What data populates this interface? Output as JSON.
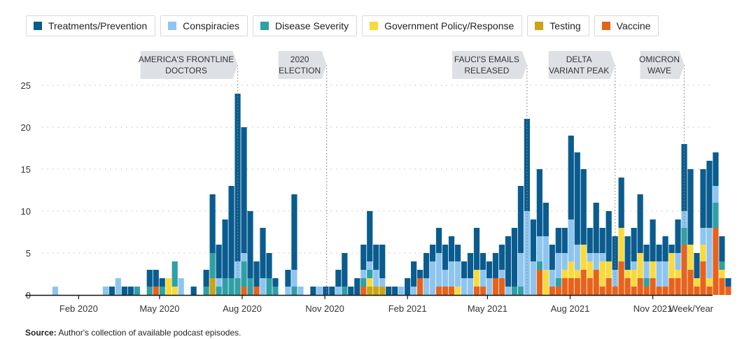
{
  "legend": [
    {
      "label": "Treatments/Prevention",
      "color": "#0a5c8f"
    },
    {
      "label": "Conspiracies",
      "color": "#8ec5f0"
    },
    {
      "label": "Disease Severity",
      "color": "#2fa0a6"
    },
    {
      "label": "Government Policy/Response",
      "color": "#f9da3c"
    },
    {
      "label": "Testing",
      "color": "#c9a514"
    },
    {
      "label": "Vaccine",
      "color": "#e8621b"
    }
  ],
  "source": {
    "label": "Source:",
    "text": "Author's collection of available podcast episodes."
  },
  "chart_data": {
    "type": "bar",
    "stacked": true,
    "xlabel": "Week/Year",
    "ylabel": "",
    "ylim": [
      0,
      25
    ],
    "yticks": [
      0,
      5,
      10,
      15,
      20,
      25
    ],
    "grid": true,
    "x_axis": {
      "type": "week",
      "start": "2020-01-06",
      "tick_labels": [
        "Feb 2020",
        "May 2020",
        "Aug 2020",
        "Nov 2020",
        "Feb 2021",
        "May 2021",
        "Aug 2021",
        "Nov 2021"
      ],
      "tick_dates": [
        "2020-02-01",
        "2020-05-01",
        "2020-08-01",
        "2020-11-01",
        "2021-02-01",
        "2021-05-01",
        "2021-08-01",
        "2021-11-01"
      ]
    },
    "series_order": [
      "Vaccine",
      "Testing",
      "Government Policy/Response",
      "Disease Severity",
      "Conspiracies",
      "Treatments/Prevention"
    ],
    "weeks": [
      {
        "week": "2020-01-06",
        "Conspiracies": 1
      },
      {
        "week": "2020-01-13"
      },
      {
        "week": "2020-01-20"
      },
      {
        "week": "2020-01-27"
      },
      {
        "week": "2020-02-03"
      },
      {
        "week": "2020-02-10"
      },
      {
        "week": "2020-02-17"
      },
      {
        "week": "2020-02-24"
      },
      {
        "week": "2020-03-02",
        "Conspiracies": 1
      },
      {
        "week": "2020-03-09",
        "Treatments/Prevention": 1
      },
      {
        "week": "2020-03-16",
        "Conspiracies": 2
      },
      {
        "week": "2020-03-23",
        "Treatments/Prevention": 1
      },
      {
        "week": "2020-03-30",
        "Treatments/Prevention": 1
      },
      {
        "week": "2020-04-06",
        "Disease Severity": 1
      },
      {
        "week": "2020-04-13"
      },
      {
        "week": "2020-04-20",
        "Disease Severity": 1,
        "Treatments/Prevention": 2
      },
      {
        "week": "2020-04-27",
        "Vaccine": 1,
        "Treatments/Prevention": 2
      },
      {
        "week": "2020-05-04",
        "Disease Severity": 1,
        "Treatments/Prevention": 1
      },
      {
        "week": "2020-05-11",
        "Government Policy/Response": 2
      },
      {
        "week": "2020-05-18",
        "Government Policy/Response": 1,
        "Disease Severity": 3
      },
      {
        "week": "2020-05-25",
        "Conspiracies": 2
      },
      {
        "week": "2020-06-01"
      },
      {
        "week": "2020-06-08",
        "Treatments/Prevention": 1
      },
      {
        "week": "2020-06-15"
      },
      {
        "week": "2020-06-22",
        "Disease Severity": 1,
        "Treatments/Prevention": 2
      },
      {
        "week": "2020-06-29",
        "Testing": 2,
        "Disease Severity": 3,
        "Treatments/Prevention": 7
      },
      {
        "week": "2020-07-06",
        "Disease Severity": 1,
        "Conspiracies": 1,
        "Treatments/Prevention": 4
      },
      {
        "week": "2020-07-13",
        "Disease Severity": 2,
        "Treatments/Prevention": 7
      },
      {
        "week": "2020-07-20",
        "Disease Severity": 2,
        "Treatments/Prevention": 11
      },
      {
        "week": "2020-07-27",
        "Disease Severity": 2,
        "Conspiracies": 2,
        "Treatments/Prevention": 20
      },
      {
        "week": "2020-08-03",
        "Vaccine": 1,
        "Disease Severity": 3,
        "Conspiracies": 1,
        "Treatments/Prevention": 15
      },
      {
        "week": "2020-08-10",
        "Disease Severity": 2,
        "Treatments/Prevention": 8
      },
      {
        "week": "2020-08-17",
        "Vaccine": 1,
        "Treatments/Prevention": 3
      },
      {
        "week": "2020-08-24",
        "Conspiracies": 2,
        "Treatments/Prevention": 6
      },
      {
        "week": "2020-08-31",
        "Disease Severity": 2,
        "Treatments/Prevention": 3
      },
      {
        "week": "2020-09-07",
        "Disease Severity": 1,
        "Treatments/Prevention": 1
      },
      {
        "week": "2020-09-14"
      },
      {
        "week": "2020-09-21",
        "Conspiracies": 1,
        "Treatments/Prevention": 2
      },
      {
        "week": "2020-09-28",
        "Disease Severity": 1,
        "Conspiracies": 2,
        "Treatments/Prevention": 9
      },
      {
        "week": "2020-10-05",
        "Conspiracies": 1
      },
      {
        "week": "2020-10-12"
      },
      {
        "week": "2020-10-19",
        "Treatments/Prevention": 1
      },
      {
        "week": "2020-10-26",
        "Conspiracies": 1
      },
      {
        "week": "2020-11-02",
        "Treatments/Prevention": 1
      },
      {
        "week": "2020-11-09",
        "Treatments/Prevention": 1
      },
      {
        "week": "2020-11-16",
        "Conspiracies": 1,
        "Treatments/Prevention": 2
      },
      {
        "week": "2020-11-23",
        "Disease Severity": 1,
        "Treatments/Prevention": 4
      },
      {
        "week": "2020-11-30",
        "Treatments/Prevention": 1
      },
      {
        "week": "2020-12-07",
        "Treatments/Prevention": 2
      },
      {
        "week": "2020-12-14",
        "Vaccine": 1,
        "Disease Severity": 1,
        "Conspiracies": 1,
        "Treatments/Prevention": 3
      },
      {
        "week": "2020-12-21",
        "Testing": 1,
        "Government Policy/Response": 1,
        "Disease Severity": 1,
        "Conspiracies": 1,
        "Treatments/Prevention": 6
      },
      {
        "week": "2020-12-28",
        "Testing": 1,
        "Conspiracies": 2,
        "Treatments/Prevention": 3
      },
      {
        "week": "2021-01-04",
        "Testing": 1,
        "Conspiracies": 1,
        "Treatments/Prevention": 4
      },
      {
        "week": "2021-01-11",
        "Treatments/Prevention": 1
      },
      {
        "week": "2021-01-18",
        "Treatments/Prevention": 1
      },
      {
        "week": "2021-01-25",
        "Conspiracies": 1
      },
      {
        "week": "2021-02-01",
        "Treatments/Prevention": 2
      },
      {
        "week": "2021-02-08",
        "Conspiracies": 1,
        "Treatments/Prevention": 3
      },
      {
        "week": "2021-02-15",
        "Vaccine": 2,
        "Treatments/Prevention": 1
      },
      {
        "week": "2021-02-22",
        "Conspiracies": 2,
        "Treatments/Prevention": 3
      },
      {
        "week": "2021-03-01",
        "Conspiracies": 4,
        "Treatments/Prevention": 2
      },
      {
        "week": "2021-03-08",
        "Vaccine": 1,
        "Conspiracies": 4,
        "Treatments/Prevention": 3
      },
      {
        "week": "2021-03-15",
        "Vaccine": 1,
        "Conspiracies": 2,
        "Treatments/Prevention": 3
      },
      {
        "week": "2021-03-22",
        "Vaccine": 1,
        "Conspiracies": 3,
        "Treatments/Prevention": 3
      },
      {
        "week": "2021-03-29",
        "Government Policy/Response": 1,
        "Conspiracies": 3,
        "Treatments/Prevention": 2
      },
      {
        "week": "2021-04-05",
        "Conspiracies": 2,
        "Treatments/Prevention": 2
      },
      {
        "week": "2021-04-12",
        "Conspiracies": 2,
        "Treatments/Prevention": 3
      },
      {
        "week": "2021-04-19",
        "Vaccine": 1,
        "Government Policy/Response": 2,
        "Treatments/Prevention": 5
      },
      {
        "week": "2021-04-26",
        "Vaccine": 1,
        "Conspiracies": 2,
        "Treatments/Prevention": 2
      },
      {
        "week": "2021-05-03",
        "Conspiracies": 2,
        "Treatments/Prevention": 2
      },
      {
        "week": "2021-05-10",
        "Vaccine": 2,
        "Treatments/Prevention": 3
      },
      {
        "week": "2021-05-17",
        "Vaccine": 2,
        "Conspiracies": 1,
        "Treatments/Prevention": 3
      },
      {
        "week": "2021-05-24",
        "Conspiracies": 1,
        "Treatments/Prevention": 6
      },
      {
        "week": "2021-05-31",
        "Disease Severity": 1,
        "Treatments/Prevention": 7
      },
      {
        "week": "2021-06-07",
        "Disease Severity": 1,
        "Conspiracies": 4,
        "Treatments/Prevention": 8
      },
      {
        "week": "2021-06-14",
        "Conspiracies": 10,
        "Treatments/Prevention": 11
      },
      {
        "week": "2021-06-21",
        "Conspiracies": 4,
        "Treatments/Prevention": 5
      },
      {
        "week": "2021-06-28",
        "Vaccine": 3,
        "Disease Severity": 1,
        "Conspiracies": 3,
        "Treatments/Prevention": 8
      },
      {
        "week": "2021-07-05",
        "Government Policy/Response": 3,
        "Conspiracies": 4,
        "Treatments/Prevention": 4
      },
      {
        "week": "2021-07-12",
        "Vaccine": 1,
        "Conspiracies": 2,
        "Treatments/Prevention": 3
      },
      {
        "week": "2021-07-19",
        "Vaccine": 1,
        "Disease Severity": 1,
        "Conspiracies": 3,
        "Treatments/Prevention": 3
      },
      {
        "week": "2021-07-26",
        "Vaccine": 2,
        "Government Policy/Response": 1,
        "Conspiracies": 2,
        "Treatments/Prevention": 3
      },
      {
        "week": "2021-08-02",
        "Vaccine": 2,
        "Government Policy/Response": 2,
        "Conspiracies": 5,
        "Treatments/Prevention": 10
      },
      {
        "week": "2021-08-09",
        "Vaccine": 2,
        "Government Policy/Response": 1,
        "Conspiracies": 3,
        "Treatments/Prevention": 11
      },
      {
        "week": "2021-08-16",
        "Vaccine": 3,
        "Government Policy/Response": 3,
        "Treatments/Prevention": 9
      },
      {
        "week": "2021-08-23",
        "Vaccine": 2,
        "Government Policy/Response": 2,
        "Conspiracies": 1,
        "Treatments/Prevention": 3
      },
      {
        "week": "2021-08-30",
        "Vaccine": 3,
        "Conspiracies": 2,
        "Treatments/Prevention": 6
      },
      {
        "week": "2021-09-06",
        "Vaccine": 1,
        "Government Policy/Response": 3,
        "Conspiracies": 1,
        "Treatments/Prevention": 3
      },
      {
        "week": "2021-09-13",
        "Vaccine": 2,
        "Government Policy/Response": 2,
        "Treatments/Prevention": 6
      },
      {
        "week": "2021-09-20",
        "Vaccine": 1,
        "Conspiracies": 2,
        "Treatments/Prevention": 4
      },
      {
        "week": "2021-09-27",
        "Vaccine": 4,
        "Government Policy/Response": 4,
        "Treatments/Prevention": 6
      },
      {
        "week": "2021-10-04",
        "Vaccine": 2,
        "Government Policy/Response": 1,
        "Treatments/Prevention": 4
      },
      {
        "week": "2021-10-11",
        "Vaccine": 1,
        "Government Policy/Response": 2,
        "Conspiracies": 1,
        "Treatments/Prevention": 4
      },
      {
        "week": "2021-10-18",
        "Vaccine": 2,
        "Government Policy/Response": 3,
        "Treatments/Prevention": 7
      },
      {
        "week": "2021-10-25",
        "Vaccine": 1,
        "Disease Severity": 1,
        "Conspiracies": 2,
        "Treatments/Prevention": 2
      },
      {
        "week": "2021-11-01",
        "Vaccine": 2,
        "Government Policy/Response": 2,
        "Treatments/Prevention": 5
      },
      {
        "week": "2021-11-08",
        "Vaccine": 1,
        "Conspiracies": 3,
        "Treatments/Prevention": 2
      },
      {
        "week": "2021-11-15",
        "Vaccine": 1,
        "Conspiracies": 3,
        "Treatments/Prevention": 3
      },
      {
        "week": "2021-11-22",
        "Vaccine": 2,
        "Government Policy/Response": 3,
        "Treatments/Prevention": 1
      },
      {
        "week": "2021-11-29",
        "Vaccine": 2,
        "Government Policy/Response": 1,
        "Conspiracies": 2,
        "Treatments/Prevention": 4
      },
      {
        "week": "2021-12-06",
        "Vaccine": 6,
        "Disease Severity": 2,
        "Conspiracies": 2,
        "Treatments/Prevention": 8
      },
      {
        "week": "2021-12-13",
        "Vaccine": 3,
        "Government Policy/Response": 3,
        "Treatments/Prevention": 9
      },
      {
        "week": "2021-12-20",
        "Vaccine": 1,
        "Government Policy/Response": 1,
        "Treatments/Prevention": 3
      },
      {
        "week": "2021-12-27",
        "Vaccine": 4,
        "Government Policy/Response": 2,
        "Conspiracies": 2,
        "Treatments/Prevention": 7
      },
      {
        "week": "2022-01-03",
        "Vaccine": 1,
        "Government Policy/Response": 1,
        "Conspiracies": 6,
        "Treatments/Prevention": 8
      },
      {
        "week": "2022-01-10",
        "Vaccine": 8,
        "Disease Severity": 3,
        "Conspiracies": 2,
        "Treatments/Prevention": 4
      },
      {
        "week": "2022-01-17",
        "Vaccine": 2,
        "Government Policy/Response": 1,
        "Disease Severity": 1,
        "Treatments/Prevention": 3
      },
      {
        "week": "2022-01-24",
        "Vaccine": 1,
        "Treatments/Prevention": 1
      }
    ],
    "annotations": [
      {
        "lines": [
          "AMERICA'S FRONTLINE",
          "DOCTORS"
        ],
        "date": "2020-07-27"
      },
      {
        "lines": [
          "2020",
          "ELECTION"
        ],
        "date": "2020-11-03"
      },
      {
        "lines": [
          "FAUCI'S EMAILS",
          "RELEASED"
        ],
        "date": "2021-06-14"
      },
      {
        "lines": [
          "DELTA",
          "VARIANT PEAK"
        ],
        "date": "2021-09-20"
      },
      {
        "lines": [
          "OMICRON",
          "WAVE"
        ],
        "date": "2021-12-06"
      }
    ]
  }
}
